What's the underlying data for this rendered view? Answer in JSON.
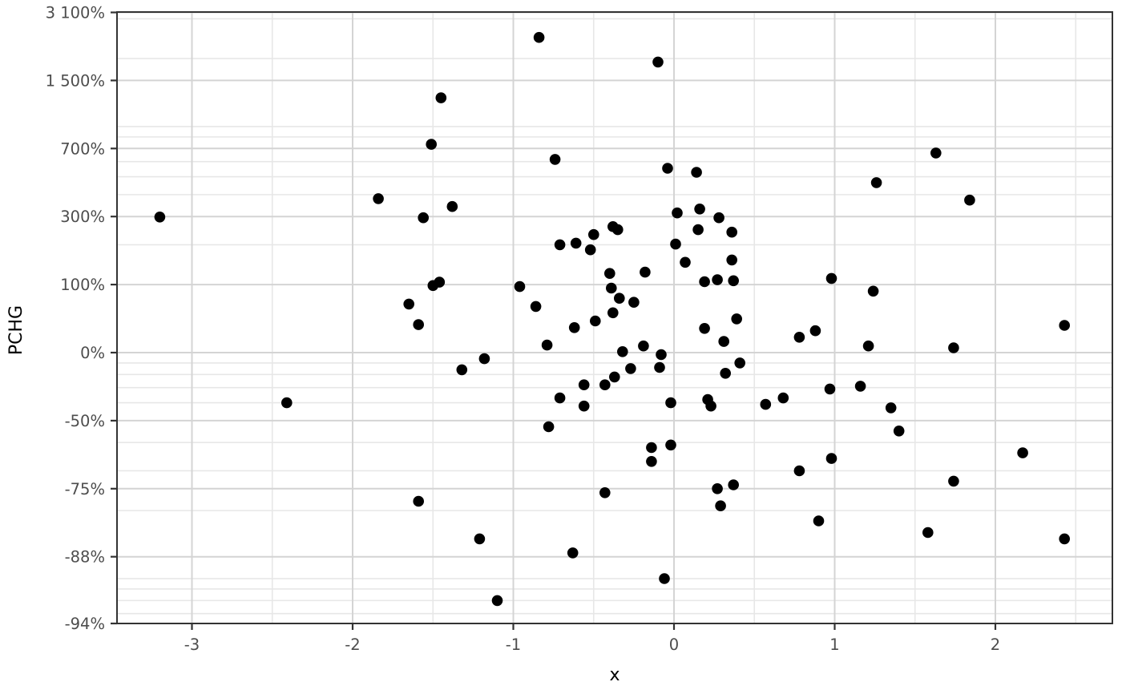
{
  "chart_data": {
    "type": "scatter",
    "title": "",
    "xlabel": "x",
    "ylabel": "PCHG",
    "grid": true,
    "legend": false,
    "point_color": "#000000",
    "colors": {
      "background": "#ffffff",
      "panel_background": "#ffffff",
      "major_grid": "#d4d4d4",
      "minor_grid": "#e7e7e7",
      "panel_border": "#333333",
      "tick_mark": "#333333",
      "tick_label": "#4d4d4d",
      "axis_title": "#000000"
    },
    "x_axis": {
      "range": [
        -3.47,
        2.73
      ],
      "ticks": [
        {
          "value": -3,
          "label": "-3"
        },
        {
          "value": -2,
          "label": "-2"
        },
        {
          "value": -1,
          "label": "-1"
        },
        {
          "value": 0,
          "label": "0"
        },
        {
          "value": 1,
          "label": "1"
        },
        {
          "value": 2,
          "label": "2"
        }
      ],
      "minor_ticks": [
        -2.5,
        -1.5,
        -0.5,
        0.5,
        1.5,
        2.5
      ]
    },
    "y_axis": {
      "scale": "log2 of fold-change, fold_change = PCHG/100 + 1",
      "range_fold_change": [
        0.0607,
        32.6
      ],
      "ticks": [
        {
          "fold_change": 32,
          "pchg": 3100,
          "label": "3 100%"
        },
        {
          "fold_change": 16,
          "pchg": 1500,
          "label": "1 500%"
        },
        {
          "fold_change": 8,
          "pchg": 700,
          "label": "700%"
        },
        {
          "fold_change": 4,
          "pchg": 300,
          "label": "300%"
        },
        {
          "fold_change": 2,
          "pchg": 100,
          "label": "100%"
        },
        {
          "fold_change": 1,
          "pchg": 0,
          "label": "0%"
        },
        {
          "fold_change": 0.5,
          "pchg": -50,
          "label": "-50%"
        },
        {
          "fold_change": 0.25,
          "pchg": -75,
          "label": "-75%"
        },
        {
          "fold_change": 0.125,
          "pchg": -88,
          "label": "-88%"
        },
        {
          "fold_change": 0.0625,
          "pchg": -94,
          "label": "-94%"
        }
      ],
      "minor_fold_changes": [
        30,
        20,
        10,
        9,
        7,
        6,
        5,
        3,
        0.9,
        0.8,
        0.7,
        0.6,
        0.4,
        0.3,
        0.2,
        0.1,
        0.09,
        0.08,
        0.07
      ]
    },
    "points": [
      [
        -1.45,
        1240
      ],
      [
        -1.51,
        735
      ],
      [
        -1.84,
        380
      ],
      [
        -1.38,
        343
      ],
      [
        -0.84,
        2380
      ],
      [
        -0.1,
        1830
      ],
      [
        -0.74,
        616
      ],
      [
        -0.04,
        554
      ],
      [
        0.14,
        528
      ],
      [
        0.16,
        332
      ],
      [
        1.63,
        664
      ],
      [
        1.26,
        465
      ],
      [
        1.84,
        373
      ],
      [
        -3.2,
        298
      ],
      [
        -1.56,
        295
      ],
      [
        -1.5,
        98
      ],
      [
        -1.46,
        105
      ],
      [
        -1.65,
        64
      ],
      [
        -1.59,
        33
      ],
      [
        -2.41,
        -40
      ],
      [
        0.02,
        315
      ],
      [
        0.28,
        295
      ],
      [
        -0.38,
        261
      ],
      [
        -0.35,
        250
      ],
      [
        -0.5,
        233
      ],
      [
        0.15,
        250
      ],
      [
        0.36,
        241
      ],
      [
        -0.71,
        200
      ],
      [
        -0.61,
        205
      ],
      [
        -0.52,
        185
      ],
      [
        0.01,
        202
      ],
      [
        0.07,
        151
      ],
      [
        0.36,
        157
      ],
      [
        -0.4,
        124
      ],
      [
        -0.18,
        127
      ],
      [
        0.19,
        106
      ],
      [
        0.27,
        110
      ],
      [
        0.37,
        108
      ],
      [
        -0.96,
        96
      ],
      [
        -0.39,
        93
      ],
      [
        -0.34,
        74
      ],
      [
        -0.25,
        67
      ],
      [
        -0.86,
        60
      ],
      [
        -0.38,
        50
      ],
      [
        -0.49,
        38
      ],
      [
        -0.62,
        29
      ],
      [
        0.19,
        28
      ],
      [
        0.39,
        41
      ],
      [
        0.31,
        12
      ],
      [
        -0.79,
        8
      ],
      [
        -0.32,
        1
      ],
      [
        -0.19,
        7
      ],
      [
        -0.08,
        -2
      ],
      [
        -1.18,
        -6
      ],
      [
        -1.32,
        -16
      ],
      [
        -0.27,
        -15
      ],
      [
        -0.09,
        -14
      ],
      [
        -0.37,
        -22
      ],
      [
        -0.43,
        -28
      ],
      [
        -0.56,
        -28
      ],
      [
        0.32,
        -19
      ],
      [
        0.41,
        -10
      ],
      [
        -0.71,
        -37
      ],
      [
        -0.56,
        -42
      ],
      [
        -0.02,
        -40
      ],
      [
        0.21,
        -38
      ],
      [
        0.23,
        -42
      ],
      [
        0.57,
        -41
      ],
      [
        0.68,
        -37
      ],
      [
        0.98,
        113
      ],
      [
        1.24,
        87
      ],
      [
        0.78,
        17
      ],
      [
        0.88,
        25
      ],
      [
        1.21,
        7
      ],
      [
        1.74,
        5
      ],
      [
        2.43,
        32
      ],
      [
        0.97,
        -31
      ],
      [
        1.16,
        -29
      ],
      [
        1.35,
        -43
      ],
      [
        -1.59,
        -78
      ],
      [
        -0.78,
        -53
      ],
      [
        -0.14,
        -62
      ],
      [
        -0.02,
        -61
      ],
      [
        -0.14,
        -67
      ],
      [
        -0.43,
        -76
      ],
      [
        0.27,
        -75
      ],
      [
        0.37,
        -74
      ],
      [
        0.29,
        -79
      ],
      [
        -1.21,
        -85
      ],
      [
        -0.63,
        -87
      ],
      [
        -0.06,
        -90
      ],
      [
        -1.1,
        -92
      ],
      [
        1.4,
        -55
      ],
      [
        0.98,
        -66
      ],
      [
        2.17,
        -64
      ],
      [
        0.78,
        -70
      ],
      [
        1.74,
        -73
      ],
      [
        0.9,
        -82
      ],
      [
        1.58,
        -84
      ],
      [
        2.43,
        -85
      ]
    ]
  }
}
